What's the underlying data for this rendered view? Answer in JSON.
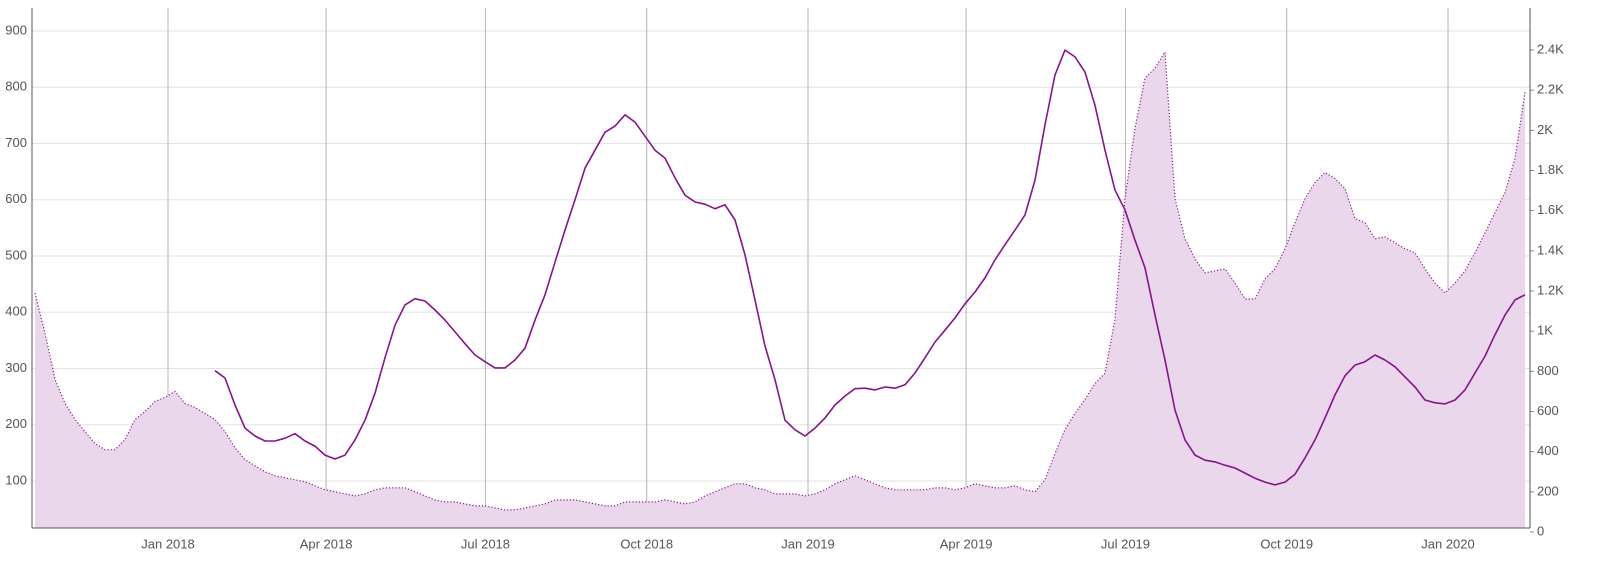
{
  "chart_data": {
    "type": "line",
    "x": [
      2017.7922,
      2017.8078,
      2017.8234,
      2017.8391,
      2017.8547,
      2017.8703,
      2017.8859,
      2017.9016,
      2017.9172,
      2017.9328,
      2017.9484,
      2017.9641,
      2017.9797,
      2017.9953,
      2018.0109,
      2018.0266,
      2018.0422,
      2018.0578,
      2018.0734,
      2018.0891,
      2018.1047,
      2018.1203,
      2018.1359,
      2018.1516,
      2018.1672,
      2018.1828,
      2018.1984,
      2018.2141,
      2018.2297,
      2018.2453,
      2018.2609,
      2018.2766,
      2018.2922,
      2018.3078,
      2018.3234,
      2018.3391,
      2018.3547,
      2018.3703,
      2018.3859,
      2018.4016,
      2018.4172,
      2018.4328,
      2018.4484,
      2018.4641,
      2018.4797,
      2018.4953,
      2018.5109,
      2018.5266,
      2018.5422,
      2018.5578,
      2018.5734,
      2018.5891,
      2018.6047,
      2018.6203,
      2018.6359,
      2018.6516,
      2018.6672,
      2018.6828,
      2018.6984,
      2018.7141,
      2018.7297,
      2018.7453,
      2018.7609,
      2018.7766,
      2018.7922,
      2018.8078,
      2018.8234,
      2018.8391,
      2018.8547,
      2018.8703,
      2018.8859,
      2018.9016,
      2018.9172,
      2018.9328,
      2018.9484,
      2018.9641,
      2018.9797,
      2018.9953,
      2019.0109,
      2019.0266,
      2019.0422,
      2019.0578,
      2019.0734,
      2019.0891,
      2019.1047,
      2019.1203,
      2019.1359,
      2019.1516,
      2019.1672,
      2019.1828,
      2019.1984,
      2019.2141,
      2019.2297,
      2019.2453,
      2019.2609,
      2019.2766,
      2019.2922,
      2019.3078,
      2019.3234,
      2019.3391,
      2019.3547,
      2019.3703,
      2019.3859,
      2019.4016,
      2019.4172,
      2019.4328,
      2019.4484,
      2019.4641,
      2019.4797,
      2019.4953,
      2019.5109,
      2019.5266,
      2019.5422,
      2019.5578,
      2019.5734,
      2019.5891,
      2019.6047,
      2019.6203,
      2019.6359,
      2019.6516,
      2019.6672,
      2019.6828,
      2019.6984,
      2019.7141,
      2019.7297,
      2019.7453,
      2019.7609,
      2019.7766,
      2019.7922,
      2019.8078,
      2019.8234,
      2019.8391,
      2019.8547,
      2019.8703,
      2019.8859,
      2019.9016,
      2019.9172,
      2019.9328,
      2019.9484,
      2019.9641,
      2019.9797,
      2019.9953,
      2020.0109,
      2020.0266,
      2020.0422,
      2020.0578,
      2020.0734,
      2020.0891,
      2020.1047,
      2020.1203
    ],
    "series": [
      {
        "type": "area",
        "axis": "y2",
        "color": "#8b1a8b",
        "fill": "#ead7eb",
        "values": [
          1190,
          990,
          760,
          640,
          560,
          500,
          440,
          410,
          410,
          460,
          560,
          600,
          650,
          670,
          700,
          640,
          620,
          590,
          560,
          500,
          420,
          360,
          330,
          300,
          280,
          270,
          260,
          250,
          230,
          210,
          200,
          190,
          180,
          190,
          210,
          220,
          220,
          220,
          200,
          180,
          160,
          150,
          150,
          140,
          130,
          130,
          120,
          110,
          110,
          120,
          130,
          140,
          160,
          160,
          160,
          150,
          140,
          130,
          130,
          150,
          150,
          150,
          150,
          160,
          150,
          140,
          150,
          180,
          200,
          220,
          240,
          240,
          220,
          210,
          190,
          190,
          190,
          180,
          190,
          210,
          240,
          260,
          280,
          260,
          240,
          220,
          210,
          210,
          210,
          210,
          220,
          220,
          210,
          220,
          240,
          230,
          220,
          220,
          230,
          210,
          200,
          260,
          390,
          510,
          590,
          660,
          740,
          790,
          1060,
          1660,
          2010,
          2260,
          2310,
          2390,
          1660,
          1460,
          1360,
          1290,
          1300,
          1310,
          1240,
          1160,
          1160,
          1260,
          1310,
          1410,
          1540,
          1660,
          1740,
          1790,
          1760,
          1710,
          1560,
          1540,
          1460,
          1470,
          1440,
          1410,
          1390,
          1310,
          1240,
          1190,
          1240,
          1300,
          1390,
          1490,
          1590,
          1690,
          1860,
          2190
        ]
      },
      {
        "type": "line",
        "color": "#86148a",
        "values": [
          null,
          null,
          null,
          null,
          null,
          null,
          null,
          null,
          null,
          null,
          null,
          null,
          null,
          null,
          null,
          null,
          null,
          null,
          296,
          283,
          235,
          194,
          180,
          171,
          171,
          176,
          184,
          171,
          162,
          146,
          139,
          146,
          173,
          208,
          256,
          319,
          377,
          413,
          424,
          420,
          404,
          386,
          365,
          344,
          324,
          312,
          301,
          301,
          315,
          336,
          386,
          431,
          489,
          546,
          600,
          656,
          688,
          720,
          731,
          751,
          738,
          713,
          688,
          674,
          639,
          608,
          596,
          592,
          584,
          591,
          564,
          502,
          422,
          340,
          280,
          208,
          191,
          180,
          194,
          212,
          235,
          251,
          264,
          265,
          262,
          267,
          265,
          271,
          292,
          319,
          347,
          368,
          390,
          415,
          436,
          461,
          493,
          520,
          546,
          573,
          635,
          733,
          822,
          866,
          854,
          827,
          768,
          688,
          617,
          582,
          528,
          479,
          395,
          315,
          226,
          173,
          146,
          137,
          134,
          128,
          123,
          114,
          105,
          98,
          93,
          98,
          112,
          141,
          173,
          212,
          253,
          287,
          306,
          312,
          324,
          315,
          303,
          285,
          267,
          244,
          239,
          237,
          244,
          262,
          292,
          322,
          360,
          395,
          422,
          431
        ]
      }
    ],
    "xlim": [
      2017.7875,
      2020.1281
    ],
    "xticks": [
      {
        "value": 2018,
        "label": "Jan 2018"
      },
      {
        "value": 2018.247,
        "label": "Apr 2018"
      },
      {
        "value": 2018.496,
        "label": "Jul 2018"
      },
      {
        "value": 2018.748,
        "label": "Oct 2018"
      },
      {
        "value": 2019,
        "label": "Jan 2019"
      },
      {
        "value": 2019.247,
        "label": "Apr 2019"
      },
      {
        "value": 2019.496,
        "label": "Jul 2019"
      },
      {
        "value": 2019.748,
        "label": "Oct 2019"
      },
      {
        "value": 2020,
        "label": "Jan 2020"
      }
    ],
    "ylim": [
      16.4,
      940.9
    ],
    "yticks": [
      100,
      200,
      300,
      400,
      500,
      600,
      700,
      800,
      900
    ],
    "y2lim": [
      20,
      2609
    ],
    "y2ticks": [
      0,
      200,
      400,
      600,
      800,
      {
        "value": 1000,
        "label": "1K"
      },
      {
        "value": 1200,
        "label": "1.2K"
      },
      {
        "value": 1400,
        "label": "1.4K"
      },
      {
        "value": 1600,
        "label": "1.6K"
      },
      {
        "value": 1800,
        "label": "1.8K"
      },
      {
        "value": 2000,
        "label": "2K"
      },
      {
        "value": 2200,
        "label": "2.2K"
      },
      {
        "value": 2400,
        "label": "2.4K"
      }
    ],
    "grid": true
  }
}
